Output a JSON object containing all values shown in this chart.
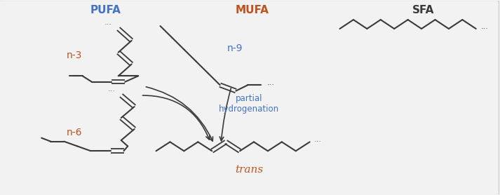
{
  "bg_color": "#f2f2f2",
  "label_pufa": "PUFA",
  "label_mufa": "MUFA",
  "label_sfa": "SFA",
  "label_n3": "n-3",
  "label_n6": "n-6",
  "label_n9": "n-9",
  "label_trans": "trans",
  "label_partial": "partial\nhydrogenation",
  "color_blue": "#4472C4",
  "color_orange": "#C0521F",
  "color_dark": "#3a3a3a",
  "lw": 1.5,
  "lw_double": 1.3
}
